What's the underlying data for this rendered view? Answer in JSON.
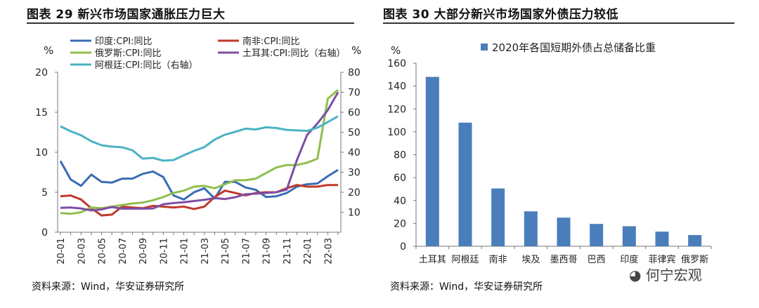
{
  "chart_data": [
    {
      "type": "line",
      "title": "图表 29 新兴市场国家通胀压力巨大",
      "source": "资料来源：Wind，华安证券研究所",
      "left_axis_unit": "%",
      "right_axis_unit": "%",
      "left_ylim": [
        0,
        20
      ],
      "left_yticks": [
        "0",
        "5",
        "10",
        "15",
        "20"
      ],
      "right_ylim": [
        0,
        80
      ],
      "right_yticks": [
        "10",
        "20",
        "30",
        "40",
        "50",
        "60",
        "70",
        "80"
      ],
      "x": [
        "20-01",
        "20-02",
        "20-03",
        "20-04",
        "20-05",
        "20-06",
        "20-07",
        "20-08",
        "20-09",
        "20-10",
        "20-11",
        "20-12",
        "21-01",
        "21-02",
        "21-03",
        "21-04",
        "21-05",
        "21-06",
        "21-07",
        "21-08",
        "21-09",
        "21-10",
        "21-11",
        "21-12",
        "22-01",
        "22-02",
        "22-03",
        "22-04"
      ],
      "xtick_labels": [
        "20-01",
        "20-03",
        "20-05",
        "20-07",
        "20-09",
        "20-11",
        "21-01",
        "21-03",
        "21-05",
        "21-07",
        "21-09",
        "21-11",
        "22-01",
        "22-03"
      ],
      "series": [
        {
          "name": "印度:CPI:同比",
          "axis": "left",
          "color": "#3a6cb4",
          "values": [
            8.9,
            6.6,
            5.8,
            7.2,
            6.3,
            6.2,
            6.7,
            6.7,
            7.3,
            7.6,
            6.9,
            4.6,
            4.1,
            5.0,
            5.5,
            4.2,
            6.3,
            6.3,
            5.6,
            5.3,
            4.4,
            4.5,
            4.9,
            5.7,
            6.0,
            6.1,
            7.0,
            7.8
          ]
        },
        {
          "name": "南非:CPI:同比",
          "axis": "left",
          "color": "#c0392b",
          "values": [
            4.5,
            4.6,
            4.1,
            3.0,
            2.1,
            2.2,
            3.2,
            3.1,
            3.0,
            3.3,
            3.2,
            3.1,
            3.2,
            2.9,
            3.2,
            4.4,
            5.2,
            4.9,
            4.6,
            4.9,
            5.0,
            5.0,
            5.5,
            5.9,
            5.7,
            5.7,
            5.9,
            5.9
          ]
        },
        {
          "name": "俄罗斯:CPI:同比",
          "axis": "left",
          "color": "#8fbf4d",
          "values": [
            2.4,
            2.3,
            2.5,
            3.1,
            3.0,
            3.2,
            3.4,
            3.6,
            3.7,
            4.0,
            4.4,
            4.9,
            5.2,
            5.7,
            5.8,
            5.5,
            6.0,
            6.5,
            6.5,
            6.7,
            7.4,
            8.1,
            8.4,
            8.4,
            8.7,
            9.2,
            16.7,
            17.8
          ]
        },
        {
          "name": "土耳其:CPI:同比（右轴）",
          "axis": "right",
          "color": "#7d4ea3",
          "values": [
            12.2,
            12.4,
            11.9,
            10.9,
            11.4,
            12.6,
            11.8,
            11.8,
            11.8,
            11.9,
            14.0,
            14.6,
            15.0,
            15.6,
            16.2,
            17.1,
            16.6,
            17.5,
            19.0,
            19.3,
            19.6,
            20.0,
            21.3,
            36.1,
            48.7,
            54.4,
            61.1,
            70.0
          ]
        },
        {
          "name": "阿根廷:CPI:同比（右轴）",
          "axis": "right",
          "color": "#4bb3c4",
          "values": [
            53.0,
            50.5,
            48.5,
            45.5,
            43.5,
            42.8,
            42.5,
            41.0,
            36.8,
            37.2,
            35.8,
            36.1,
            38.5,
            40.7,
            42.6,
            46.3,
            48.8,
            50.2,
            51.8,
            51.4,
            52.5,
            52.1,
            51.2,
            50.9,
            50.7,
            52.3,
            55.1,
            58.0
          ]
        }
      ]
    },
    {
      "type": "bar",
      "title": "图表 30 大部分新兴市场国家外债压力较低",
      "source": "资料来源：Wind，华安证券研究所",
      "y_unit": "%",
      "legend": "2020年各国短期外债占总储备比重",
      "color": "#4a7ebb",
      "ylim": [
        0,
        160
      ],
      "yticks": [
        "0",
        "20",
        "40",
        "60",
        "80",
        "100",
        "120",
        "140",
        "160"
      ],
      "categories": [
        "土耳其",
        "阿根廷",
        "南非",
        "埃及",
        "墨西哥",
        "巴西",
        "印度",
        "菲律宾",
        "俄罗斯"
      ],
      "values": [
        148,
        108,
        50.5,
        30.5,
        25,
        19.5,
        17.5,
        12.8,
        9.8
      ]
    }
  ],
  "watermark": "何宁宏观"
}
